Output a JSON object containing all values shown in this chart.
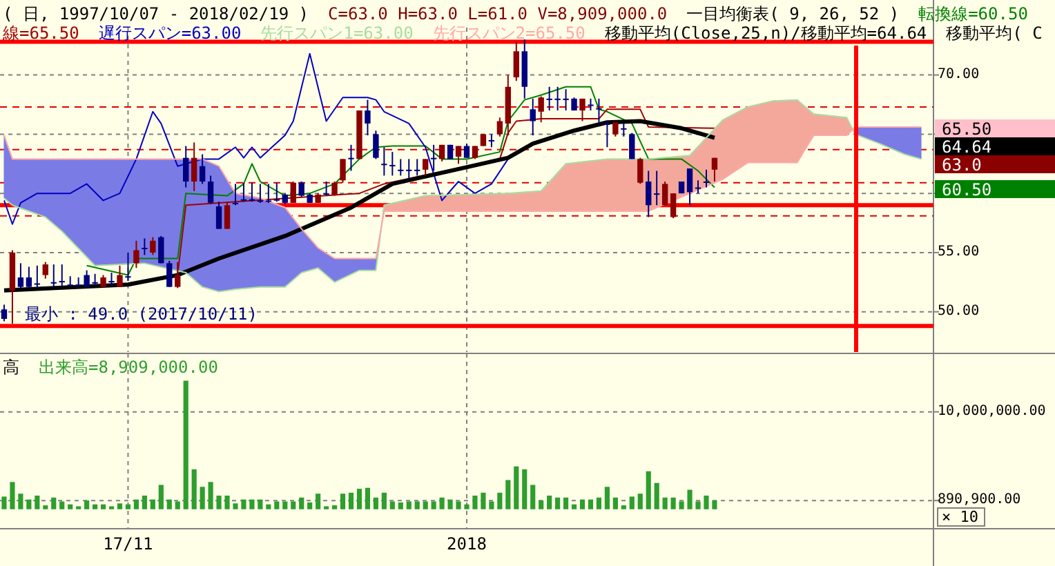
{
  "chart_data": [
    {
      "type": "candlestick",
      "title": "( 日, 1997/10/07 - 2018/02/19 )",
      "subtitle": "C=63.0 H=63.0 L=61.0 V=8,909,000.0",
      "categories": [
        null,
        null,
        null,
        null,
        null,
        null,
        null,
        null,
        null,
        null,
        null,
        null,
        null,
        null,
        null,
        null,
        null,
        null,
        null,
        null,
        null,
        null,
        null,
        null,
        null,
        null,
        null,
        null,
        null,
        null,
        null,
        null,
        null,
        null,
        null,
        null,
        null,
        null,
        null,
        null,
        null,
        null,
        null,
        null,
        null,
        null,
        null,
        null,
        null,
        null,
        null,
        null,
        null,
        null,
        null,
        null,
        null,
        null,
        null,
        null,
        null,
        null,
        null,
        null,
        null,
        null,
        null,
        null,
        null,
        null,
        null,
        null,
        null,
        null,
        null,
        null,
        null,
        null,
        null,
        null,
        null,
        null,
        null,
        null,
        null,
        null,
        null,
        null,
        null,
        null,
        null,
        null,
        null,
        null,
        null,
        null,
        null,
        null,
        null,
        null,
        null,
        null,
        null,
        null,
        null,
        null,
        null,
        null,
        null,
        null,
        null,
        null,
        null
      ],
      "ohlc": [
        [
          50.2,
          50.6,
          49.2,
          49.4
        ],
        [
          51.8,
          55.2,
          49.0,
          55.0
        ],
        [
          52.9,
          54.1,
          52.0,
          52.1
        ],
        [
          52.9,
          53.8,
          52.0,
          52.1
        ],
        [
          52.4,
          53.9,
          52.0,
          52.4
        ],
        [
          53.1,
          54.2,
          52.8,
          54.0
        ],
        [
          52.5,
          54.0,
          52.1,
          52.5
        ],
        [
          52.6,
          54.0,
          52.2,
          52.6
        ],
        [
          52.3,
          53.0,
          52.1,
          52.3
        ],
        [
          52.3,
          52.9,
          52.1,
          52.3
        ],
        [
          53.1,
          53.5,
          52.1,
          52.1
        ],
        [
          52.5,
          53.2,
          52.2,
          52.5
        ],
        [
          52.1,
          53.1,
          52.1,
          52.9
        ],
        [
          52.6,
          53.3,
          52.2,
          52.6
        ],
        [
          52.1,
          53.9,
          52.1,
          53.1
        ],
        [
          53.0,
          55.0,
          52.6,
          53.0
        ],
        [
          54.1,
          56.0,
          53.7,
          55.2
        ],
        [
          55.4,
          56.2,
          54.8,
          55.4
        ],
        [
          55.0,
          56.3,
          54.8,
          56.0
        ],
        [
          56.3,
          56.4,
          54.1,
          54.1
        ],
        [
          54.1,
          54.3,
          52.1,
          52.1
        ],
        [
          52.1,
          54.2,
          52.0,
          53.1
        ],
        [
          63.0,
          64.0,
          60.5,
          61.0
        ],
        [
          61.0,
          64.3,
          60.2,
          63.0
        ],
        [
          62.3,
          63.3,
          60.8,
          61.0
        ],
        [
          61.0,
          61.5,
          59.1,
          59.2
        ],
        [
          58.9,
          59.3,
          57.0,
          57.0
        ],
        [
          57.0,
          59.3,
          57.0,
          59.0
        ],
        [
          59.2,
          60.8,
          59.0,
          59.2
        ],
        [
          59.5,
          60.9,
          59.3,
          59.5
        ],
        [
          59.5,
          60.9,
          59.3,
          59.5
        ],
        [
          59.4,
          60.8,
          59.2,
          59.4
        ],
        [
          59.4,
          60.8,
          59.2,
          59.4
        ],
        [
          59.5,
          60.9,
          59.3,
          59.5
        ],
        [
          59.9,
          60.0,
          59.1,
          59.2
        ],
        [
          59.2,
          61.0,
          59.2,
          60.9
        ],
        [
          60.9,
          61.0,
          59.7,
          59.8
        ],
        [
          59.9,
          60.0,
          59.2,
          59.2
        ],
        [
          59.2,
          60.0,
          59.2,
          59.9
        ],
        [
          60.0,
          61.0,
          59.8,
          60.0
        ],
        [
          59.9,
          61.0,
          59.8,
          60.9
        ],
        [
          61.1,
          62.9,
          60.9,
          62.9
        ],
        [
          63.0,
          64.1,
          61.9,
          63.0
        ],
        [
          62.9,
          67.0,
          62.9,
          67.0
        ],
        [
          67.0,
          67.9,
          64.9,
          65.9
        ],
        [
          65.0,
          65.3,
          62.9,
          63.0
        ],
        [
          62.5,
          63.9,
          61.5,
          62.5
        ],
        [
          62.4,
          63.5,
          61.5,
          62.4
        ],
        [
          62.0,
          62.9,
          61.5,
          62.0
        ],
        [
          62.0,
          62.9,
          61.2,
          62.0
        ],
        [
          62.0,
          62.9,
          61.5,
          62.0
        ],
        [
          62.0,
          62.9,
          61.5,
          62.9
        ],
        [
          63.0,
          64.1,
          61.9,
          63.0
        ],
        [
          62.9,
          64.1,
          62.7,
          64.1
        ],
        [
          64.1,
          64.1,
          62.9,
          62.9
        ],
        [
          63.1,
          64.0,
          62.5,
          64.0
        ],
        [
          64.0,
          64.2,
          63.0,
          63.0
        ],
        [
          63.0,
          64.0,
          62.9,
          64.0
        ],
        [
          64.0,
          65.0,
          64.0,
          65.0
        ],
        [
          64.5,
          65.0,
          63.9,
          64.5
        ],
        [
          65.0,
          66.4,
          64.8,
          66.1
        ],
        [
          65.9,
          70.0,
          64.9,
          69.0
        ],
        [
          69.8,
          72.8,
          69.5,
          72.0
        ],
        [
          72.0,
          73.0,
          68.0,
          69.0
        ],
        [
          67.1,
          68.0,
          64.9,
          66.1
        ],
        [
          66.9,
          68.2,
          66.0,
          68.1
        ],
        [
          68.0,
          69.0,
          67.0,
          68.0
        ],
        [
          68.0,
          69.0,
          67.0,
          68.0
        ],
        [
          68.0,
          68.8,
          67.0,
          68.0
        ],
        [
          68.0,
          68.1,
          67.0,
          67.0
        ],
        [
          67.0,
          68.0,
          66.1,
          68.0
        ],
        [
          67.5,
          68.0,
          67.0,
          67.5
        ],
        [
          67.2,
          68.0,
          65.9,
          67.2
        ],
        [
          65.9,
          66.1,
          63.9,
          65.9
        ],
        [
          65.0,
          66.0,
          64.8,
          66.0
        ],
        [
          65.5,
          66.0,
          64.8,
          65.5
        ],
        [
          65.0,
          65.1,
          62.9,
          62.9
        ],
        [
          60.9,
          63.0,
          60.8,
          62.9
        ],
        [
          61.0,
          61.9,
          58.0,
          59.0
        ],
        [
          60.0,
          61.9,
          59.0,
          60.0
        ],
        [
          59.0,
          61.0,
          59.0,
          60.8
        ],
        [
          58.0,
          60.0,
          57.9,
          60.0
        ],
        [
          61.0,
          61.0,
          60.0,
          60.0
        ],
        [
          62.1,
          62.1,
          59.0,
          60.1
        ],
        [
          60.5,
          61.1,
          60.0,
          60.5
        ],
        [
          61.0,
          62.0,
          60.5,
          61.0
        ],
        [
          62.0,
          63.0,
          61.0,
          63.0
        ],
        null,
        null,
        null,
        null,
        null,
        null,
        null,
        null,
        null,
        null,
        null,
        null,
        null,
        null,
        null,
        null,
        null,
        null,
        null,
        null,
        null,
        null,
        null,
        null,
        null,
        null
      ],
      "colors": [
        "#000080",
        "#8b0000",
        "#000080",
        "#000080",
        "#000080",
        "#8b0000",
        "#000080",
        "#000080",
        "#000080",
        "#000080",
        "#000080",
        "#000080",
        "#8b0000",
        "#000080",
        "#8b0000",
        "#000080",
        "#8b0000",
        "#000080",
        "#8b0000",
        "#000080",
        "#000080",
        "#8b0000",
        "#000080",
        "#8b0000",
        "#000080",
        "#000080",
        "#000080",
        "#8b0000",
        "#000080",
        "#000080",
        "#000080",
        "#000080",
        "#000080",
        "#000080",
        "#000080",
        "#8b0000",
        "#000080",
        "#000080",
        "#8b0000",
        "#000080",
        "#8b0000",
        "#8b0000",
        "#000080",
        "#8b0000",
        "#000080",
        "#000080",
        "#000080",
        "#000080",
        "#000080",
        "#000080",
        "#000080",
        "#8b0000",
        "#000080",
        "#8b0000",
        "#000080",
        "#8b0000",
        "#000080",
        "#8b0000",
        "#8b0000",
        "#000080",
        "#8b0000",
        "#8b0000",
        "#8b0000",
        "#000080",
        "#000080",
        "#8b0000",
        "#000080",
        "#000080",
        "#000080",
        "#000080",
        "#8b0000",
        "#000080",
        "#000080",
        "#000080",
        "#8b0000",
        "#000080",
        "#000080",
        "#8b0000",
        "#000080",
        "#000080",
        "#8b0000",
        "#8b0000",
        "#000080",
        "#000080",
        "#000080",
        "#000080",
        "#8b0000",
        null,
        null,
        null,
        null,
        null,
        null,
        null,
        null,
        null,
        null,
        null,
        null,
        null,
        null,
        null,
        null,
        null,
        null,
        null,
        null,
        null,
        null,
        null,
        null,
        null,
        null
      ],
      "series": [
        {
          "name": "転換線=60.50",
          "type": "line",
          "color": "#008000",
          "values": [
            null,
            null,
            null,
            null,
            null,
            null,
            null,
            null,
            null,
            null,
            53.9,
            null,
            null,
            null,
            null,
            53.1,
            54.5,
            null,
            null,
            null,
            null,
            54.5,
            60.0,
            null,
            null,
            null,
            null,
            59.8,
            null,
            60.8,
            62.5,
            61.0,
            null,
            null,
            59.8,
            null,
            null,
            60.0,
            null,
            null,
            60.8,
            null,
            null,
            62.9,
            null,
            63.9,
            null,
            64.0,
            null,
            null,
            null,
            64.0,
            null,
            62.9,
            null,
            null,
            62.9,
            null,
            null,
            null,
            63.5,
            66.1,
            null,
            67.9,
            null,
            68.3,
            null,
            null,
            69.0,
            null,
            null,
            69.0,
            67.1,
            66.9,
            null,
            null,
            65.9,
            null,
            62.9,
            null,
            null,
            null,
            62.9,
            null,
            61.9,
            null,
            60.5,
            null,
            null,
            null,
            null,
            null,
            null,
            null,
            null,
            null,
            null,
            null,
            null,
            null,
            null,
            null,
            null,
            null,
            null,
            null,
            null,
            null,
            null,
            null,
            null,
            null,
            null
          ]
        },
        {
          "name": "線=65.50",
          "type": "line",
          "color": "#a00000",
          "values": [
            51.9,
            null,
            null,
            null,
            null,
            null,
            null,
            null,
            null,
            null,
            null,
            null,
            null,
            null,
            null,
            52.3,
            null,
            null,
            null,
            null,
            null,
            53.1,
            59.0,
            null,
            null,
            null,
            null,
            null,
            null,
            null,
            null,
            null,
            null,
            null,
            null,
            null,
            null,
            null,
            null,
            null,
            null,
            null,
            null,
            60.0,
            null,
            null,
            60.8,
            null,
            null,
            null,
            null,
            null,
            null,
            null,
            null,
            null,
            null,
            null,
            null,
            null,
            62.9,
            65.1,
            66.1,
            null,
            null,
            66.3,
            null,
            null,
            null,
            null,
            null,
            null,
            66.3,
            67.1,
            null,
            null,
            null,
            67.1,
            65.6,
            null,
            null,
            null,
            null,
            null,
            null,
            null,
            65.5,
            null,
            null,
            null,
            null,
            null,
            null,
            null,
            null,
            null,
            null,
            null,
            null,
            null,
            null,
            null,
            null,
            null,
            null,
            null,
            null,
            null,
            null,
            null,
            null,
            null,
            null
          ]
        },
        {
          "name": "遅行スパン=63.00",
          "type": "line",
          "color": "#0000c0",
          "values": [
            59.4,
            57.4,
            59.2,
            null,
            60.0,
            null,
            null,
            null,
            60.0,
            null,
            60.8,
            null,
            59.4,
            null,
            60.0,
            null,
            62.9,
            null,
            66.9,
            65.9,
            null,
            62.3,
            null,
            null,
            62.9,
            null,
            62.9,
            null,
            63.9,
            63.0,
            63.9,
            63.0,
            null,
            null,
            64.9,
            66.1,
            null,
            71.8,
            null,
            66.1,
            null,
            68.1,
            null,
            null,
            68.1,
            67.9,
            66.9,
            null,
            null,
            65.9,
            null,
            63.9,
            null,
            59.4,
            null,
            61.0,
            null,
            60.0,
            null,
            60.8,
            null,
            62.9,
            null,
            null,
            null,
            null,
            null,
            null,
            null,
            null,
            null,
            null,
            null,
            null,
            null,
            null,
            null,
            null,
            null,
            null,
            null,
            null,
            null,
            null,
            null,
            null,
            null,
            null,
            null,
            null,
            null,
            null,
            null,
            null,
            null,
            null,
            null,
            null,
            null,
            null,
            null,
            null,
            null,
            null,
            null,
            null,
            null,
            null,
            null,
            null,
            null,
            null,
            null
          ]
        },
        {
          "name": "移動平均(Close,25,n)/移動平均=64.64",
          "type": "line",
          "color": "#000000",
          "values": [
            51.8,
            null,
            null,
            null,
            null,
            null,
            null,
            null,
            null,
            null,
            null,
            null,
            null,
            null,
            null,
            52.3,
            null,
            null,
            null,
            null,
            null,
            53.1,
            null,
            null,
            null,
            null,
            54.5,
            null,
            null,
            null,
            null,
            null,
            null,
            null,
            56.4,
            null,
            null,
            null,
            null,
            null,
            null,
            null,
            58.8,
            null,
            null,
            null,
            null,
            60.8,
            null,
            null,
            null,
            null,
            null,
            null,
            61.9,
            null,
            null,
            null,
            null,
            null,
            null,
            63.0,
            null,
            null,
            64.2,
            null,
            null,
            null,
            null,
            65.3,
            null,
            null,
            null,
            66.0,
            null,
            null,
            null,
            66.1,
            null,
            null,
            null,
            null,
            65.5,
            null,
            null,
            null,
            64.7,
            null,
            null,
            null,
            null,
            null,
            null,
            null,
            null,
            null,
            null,
            null,
            null,
            null,
            null,
            null,
            null,
            null,
            null,
            null,
            null,
            null,
            null,
            null,
            null,
            null,
            null
          ]
        },
        {
          "name": "先行スパン1=63.00",
          "type": "line",
          "color": "#a8dca0",
          "values": [
            59.6,
            59.0,
            null,
            null,
            null,
            58.0,
            null,
            56.8,
            null,
            null,
            null,
            53.9,
            null,
            null,
            null,
            null,
            null,
            54.1,
            null,
            null,
            null,
            null,
            53.3,
            null,
            52.1,
            null,
            51.7,
            null,
            51.9,
            null,
            null,
            52.1,
            null,
            null,
            52.1,
            null,
            53.3,
            null,
            53.7,
            null,
            52.5,
            null,
            null,
            53.5,
            null,
            53.5,
            59.0,
            null,
            null,
            null,
            null,
            59.8,
            null,
            null,
            null,
            null,
            null,
            null,
            null,
            null,
            null,
            60.0,
            null,
            null,
            null,
            60.2,
            null,
            null,
            62.5,
            null,
            null,
            null,
            null,
            62.9,
            null,
            null,
            null,
            null,
            62.9,
            null,
            null,
            null,
            null,
            63.2,
            null,
            null,
            null,
            66.2,
            null,
            null,
            67.3,
            null,
            null,
            67.8,
            null,
            null,
            67.9,
            null,
            66.7,
            null,
            null,
            null,
            66.4,
            65.0,
            null,
            null,
            64.2,
            null,
            null,
            63.3,
            null,
            62.9,
            null
          ]
        },
        {
          "name": "先行スパン2=65.50",
          "type": "line",
          "color": "#ffa8a8",
          "values": [
            64.9,
            62.9,
            null,
            null,
            null,
            62.9,
            null,
            62.9,
            null,
            null,
            null,
            62.9,
            null,
            null,
            null,
            null,
            null,
            62.9,
            null,
            null,
            null,
            null,
            62.9,
            null,
            62.9,
            null,
            62.3,
            null,
            60.0,
            null,
            null,
            59.6,
            null,
            null,
            58.8,
            null,
            57.0,
            null,
            55.4,
            null,
            54.5,
            null,
            null,
            54.5,
            null,
            54.5,
            58.5,
            null,
            null,
            null,
            null,
            58.5,
            null,
            null,
            null,
            null,
            null,
            null,
            null,
            null,
            null,
            58.5,
            null,
            null,
            null,
            58.5,
            null,
            null,
            58.5,
            null,
            null,
            null,
            null,
            58.5,
            null,
            null,
            null,
            null,
            58.5,
            null,
            null,
            null,
            null,
            60.0,
            null,
            null,
            null,
            61.2,
            null,
            null,
            62.6,
            null,
            null,
            62.6,
            null,
            null,
            62.6,
            null,
            64.9,
            null,
            null,
            null,
            64.9,
            65.6,
            null,
            null,
            65.6,
            null,
            null,
            65.6,
            null,
            65.6,
            null
          ]
        }
      ],
      "ylim": [
        46.6,
        74.0
      ],
      "yticks": [
        {
          "value": 50,
          "label": "50.00"
        },
        {
          "value": 55,
          "label": "55.00"
        },
        {
          "value": 60,
          "label": null
        },
        {
          "value": 65,
          "label": null
        },
        {
          "value": 70,
          "label": "70.00"
        }
      ],
      "tick_labels": "y",
      "grid": true,
      "legend": "top",
      "ref_lines": [
        {
          "axis": "y",
          "value": 59.0,
          "color": "#ff0000"
        },
        {
          "axis": "y",
          "value": 72.8,
          "color": "#ff0000"
        },
        {
          "axis": "y",
          "value": 48.8,
          "color": "#ff0000"
        },
        {
          "axis": "y",
          "value": 67.3,
          "color": "#e00000",
          "line_style": "dashed"
        },
        {
          "axis": "y",
          "value": 63.7,
          "color": "#e00000",
          "line_style": "dashed"
        },
        {
          "axis": "y",
          "value": 60.9,
          "color": "#e00000",
          "line_style": "dashed"
        },
        {
          "axis": "y",
          "value": 58.1,
          "color": "#e00000",
          "line_style": "dashed"
        }
      ],
      "annotations": [
        "一目均衡表( 9, 26, 52 )",
        "移動平均( C",
        {
          "text": "最小 : 49.0 (2017/10/11)",
          "y": 49.0
        },
        "65.50",
        "64.64",
        "63.0",
        "60.50"
      ]
    },
    {
      "type": "bar",
      "categories": [
        null,
        null,
        null,
        null,
        null,
        null,
        null,
        null,
        null,
        null,
        null,
        null,
        null,
        null,
        null,
        "17/11",
        null,
        null,
        null,
        null,
        null,
        null,
        null,
        null,
        null,
        null,
        null,
        null,
        null,
        null,
        null,
        null,
        null,
        null,
        null,
        null,
        null,
        null,
        null,
        null,
        null,
        null,
        null,
        null,
        null,
        null,
        null,
        null,
        null,
        null,
        null,
        null,
        null,
        null,
        null,
        null,
        "2018",
        null,
        null,
        null,
        null,
        null,
        null,
        null,
        null,
        null,
        null,
        null,
        null,
        null,
        null,
        null,
        null,
        null,
        null,
        null,
        null,
        null,
        null,
        null,
        null,
        null,
        null,
        null,
        null,
        null,
        null,
        null,
        null,
        null,
        null,
        null,
        null,
        null,
        null,
        null,
        null,
        null,
        null,
        null,
        null,
        null,
        null,
        null,
        null,
        null,
        null,
        null,
        null,
        null,
        null,
        null,
        null
      ],
      "series": [
        {
          "name": "出来高=8,909,000.00",
          "color": "#2e9e2e",
          "values": [
            1300000,
            2800000,
            1600000,
            1000000,
            1400000,
            400000,
            1200000,
            800000,
            500000,
            300000,
            900000,
            500000,
            500000,
            300000,
            600000,
            500000,
            1000000,
            1400000,
            1000000,
            2500000,
            1000000,
            800000,
            13200000,
            4100000,
            2300000,
            2800000,
            1400000,
            1400000,
            600000,
            1000000,
            1000000,
            1000000,
            500000,
            800000,
            800000,
            800000,
            1200000,
            700000,
            1600000,
            300000,
            400000,
            1600000,
            1700000,
            2100000,
            2200000,
            1200000,
            1700000,
            800000,
            700000,
            800000,
            800000,
            800000,
            800000,
            1200000,
            1000000,
            800000,
            500000,
            1400000,
            1700000,
            800000,
            1700000,
            3000000,
            4400000,
            4100000,
            2500000,
            900000,
            1400000,
            1200000,
            1200000,
            500000,
            1000000,
            1000000,
            1200000,
            2300000,
            1200000,
            400000,
            1300000,
            1600000,
            3900000,
            2700000,
            1200000,
            1200000,
            800000,
            2000000,
            800000,
            1400000,
            900000,
            null,
            null,
            null,
            null,
            null,
            null,
            null,
            null,
            null,
            null,
            null,
            null,
            null,
            null,
            null,
            null,
            null,
            null,
            null,
            null,
            null,
            null,
            null,
            null,
            null,
            null
          ]
        }
      ],
      "ylim": [
        -2000000,
        16000000
      ],
      "ylabel": "× 10",
      "yticks": [
        {
          "value": 890900,
          "label": "890,900.00"
        },
        {
          "value": 10000000,
          "label": "10,000,000.00"
        }
      ],
      "grid": true,
      "legend": "top left",
      "annotations": [
        "高"
      ]
    }
  ]
}
